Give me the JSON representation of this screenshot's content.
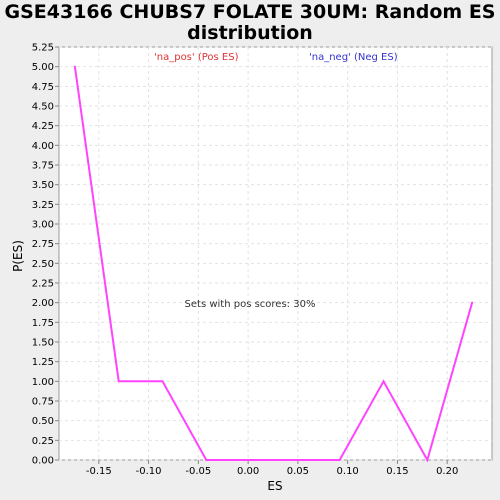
{
  "chart_data": {
    "type": "line",
    "title_line1": "GSE43166 CHUBS7 FOLATE 30UM: Random ES",
    "title_line2": "distribution",
    "xlabel": "ES",
    "ylabel": "P(ES)",
    "xlim": [
      -0.19,
      0.245
    ],
    "ylim": [
      0,
      5.25
    ],
    "x_ticks": [
      -0.15,
      -0.1,
      -0.05,
      0.0,
      0.05,
      0.1,
      0.15,
      0.2
    ],
    "x_tick_labels": [
      "-0.15",
      "-0.10",
      "-0.05",
      "0.00",
      "0.05",
      "0.10",
      "0.15",
      "0.20"
    ],
    "y_ticks": [
      0,
      0.25,
      0.5,
      0.75,
      1.0,
      1.25,
      1.5,
      1.75,
      2.0,
      2.25,
      2.5,
      2.75,
      3.0,
      3.25,
      3.5,
      3.75,
      4.0,
      4.25,
      4.5,
      4.75,
      5.0,
      5.25
    ],
    "y_tick_labels": [
      "0.00",
      "0.25",
      "0.50",
      "0.75",
      "1.00",
      "1.25",
      "1.50",
      "1.75",
      "2.00",
      "2.25",
      "2.50",
      "2.75",
      "3.00",
      "3.25",
      "3.50",
      "3.75",
      "4.00",
      "4.25",
      "4.50",
      "4.75",
      "5.00",
      "5.25"
    ],
    "grid": true,
    "series": [
      {
        "color": "#ff44ff",
        "x": [
          -0.174,
          -0.13,
          -0.086,
          -0.042,
          0.002,
          0.046,
          0.092,
          0.136,
          0.18,
          0.225
        ],
        "y": [
          5.0,
          1.0,
          1.0,
          0.0,
          0.0,
          0.0,
          0.0,
          1.0,
          0.0,
          2.0
        ]
      }
    ],
    "legend": [
      {
        "label": "'na_pos' (Pos ES)",
        "color": "#dd3333"
      },
      {
        "label": "'na_neg' (Neg ES)",
        "color": "#3333cc"
      }
    ],
    "legend_placement": "top",
    "annotation": "Sets with pos scores: 30%"
  }
}
